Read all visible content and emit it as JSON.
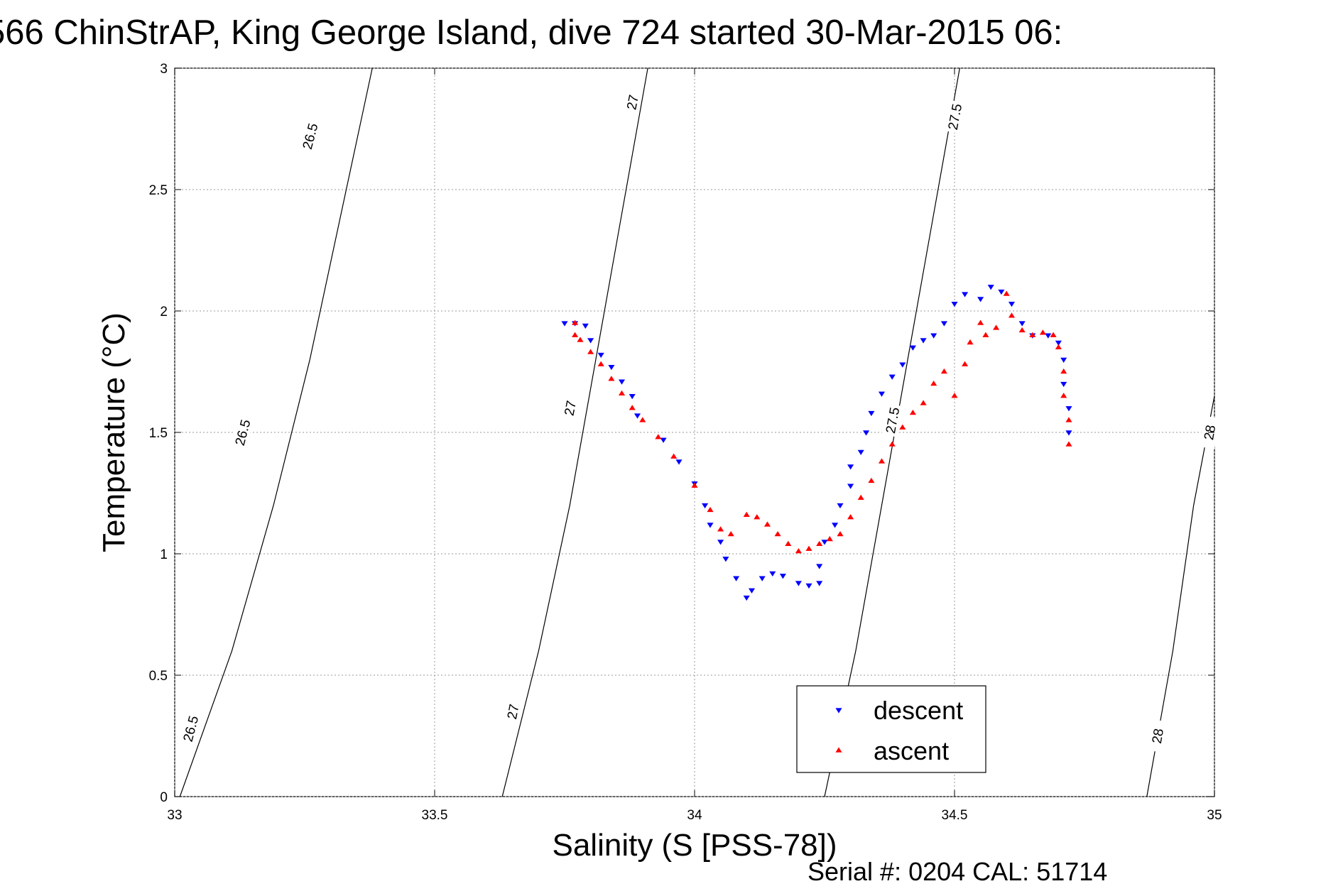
{
  "chart_data": {
    "type": "scatter",
    "title": "566 ChinStrAP, King George Island, dive 724 started 30-Mar-2015 06:",
    "xlabel": "Salinity (S [PSS-78])",
    "ylabel": "Temperature (°C)",
    "xlim": [
      33,
      35
    ],
    "ylim": [
      0,
      3
    ],
    "xticks": [
      "33",
      "33.5",
      "34",
      "34.5",
      "35"
    ],
    "yticks": [
      "0",
      "0.5",
      "1",
      "1.5",
      "2",
      "2.5",
      "3"
    ],
    "grid": true,
    "legend_position": "bottom-right",
    "footer": "Serial #: 0204  CAL: 51714",
    "contours": [
      {
        "level": "26.5",
        "points": [
          [
            33.01,
            0.0
          ],
          [
            33.11,
            0.6
          ],
          [
            33.19,
            1.2
          ],
          [
            33.26,
            1.8
          ],
          [
            33.32,
            2.4
          ],
          [
            33.38,
            3.0
          ]
        ],
        "labels": [
          [
            33.03,
            0.28
          ],
          [
            33.13,
            1.5
          ],
          [
            33.26,
            2.72
          ]
        ]
      },
      {
        "level": "27",
        "points": [
          [
            33.63,
            0.0
          ],
          [
            33.7,
            0.6
          ],
          [
            33.76,
            1.2
          ],
          [
            33.81,
            1.8
          ],
          [
            33.86,
            2.4
          ],
          [
            33.91,
            3.0
          ]
        ],
        "labels": [
          [
            33.65,
            0.35
          ],
          [
            33.76,
            1.6
          ],
          [
            33.88,
            2.86
          ]
        ]
      },
      {
        "level": "27.5",
        "points": [
          [
            34.25,
            0.0
          ],
          [
            34.31,
            0.6
          ],
          [
            34.36,
            1.2
          ],
          [
            34.41,
            1.8
          ],
          [
            34.46,
            2.4
          ],
          [
            34.51,
            3.0
          ]
        ],
        "labels": [
          [
            34.38,
            1.55
          ],
          [
            34.5,
            2.8
          ]
        ]
      },
      {
        "level": "28",
        "points": [
          [
            34.87,
            0.0
          ],
          [
            34.92,
            0.6
          ],
          [
            34.96,
            1.2
          ],
          [
            35.0,
            1.65
          ]
        ],
        "labels": [
          [
            34.89,
            0.25
          ],
          [
            34.99,
            1.5
          ]
        ]
      }
    ],
    "series": [
      {
        "name": "descent",
        "color": "#0000ff",
        "marker": "triangle-down",
        "points": [
          [
            33.75,
            1.95
          ],
          [
            33.77,
            1.95
          ],
          [
            33.79,
            1.94
          ],
          [
            33.8,
            1.88
          ],
          [
            33.82,
            1.82
          ],
          [
            33.84,
            1.77
          ],
          [
            33.86,
            1.71
          ],
          [
            33.88,
            1.65
          ],
          [
            33.89,
            1.57
          ],
          [
            33.94,
            1.47
          ],
          [
            33.97,
            1.38
          ],
          [
            34.0,
            1.29
          ],
          [
            34.02,
            1.2
          ],
          [
            34.03,
            1.12
          ],
          [
            34.05,
            1.05
          ],
          [
            34.06,
            0.98
          ],
          [
            34.08,
            0.9
          ],
          [
            34.1,
            0.82
          ],
          [
            34.11,
            0.85
          ],
          [
            34.13,
            0.9
          ],
          [
            34.15,
            0.92
          ],
          [
            34.17,
            0.91
          ],
          [
            34.2,
            0.88
          ],
          [
            34.22,
            0.87
          ],
          [
            34.24,
            0.88
          ],
          [
            34.24,
            0.95
          ],
          [
            34.25,
            1.05
          ],
          [
            34.27,
            1.12
          ],
          [
            34.28,
            1.2
          ],
          [
            34.3,
            1.28
          ],
          [
            34.3,
            1.36
          ],
          [
            34.32,
            1.42
          ],
          [
            34.33,
            1.5
          ],
          [
            34.34,
            1.58
          ],
          [
            34.36,
            1.66
          ],
          [
            34.38,
            1.73
          ],
          [
            34.4,
            1.78
          ],
          [
            34.42,
            1.85
          ],
          [
            34.44,
            1.88
          ],
          [
            34.46,
            1.9
          ],
          [
            34.48,
            1.95
          ],
          [
            34.5,
            2.03
          ],
          [
            34.52,
            2.07
          ],
          [
            34.55,
            2.05
          ],
          [
            34.57,
            2.1
          ],
          [
            34.59,
            2.08
          ],
          [
            34.61,
            2.03
          ],
          [
            34.63,
            1.95
          ],
          [
            34.65,
            1.9
          ],
          [
            34.68,
            1.9
          ],
          [
            34.7,
            1.87
          ],
          [
            34.71,
            1.8
          ],
          [
            34.71,
            1.7
          ],
          [
            34.72,
            1.6
          ],
          [
            34.72,
            1.5
          ]
        ]
      },
      {
        "name": "ascent",
        "color": "#ff0000",
        "marker": "triangle-up",
        "points": [
          [
            33.77,
            1.95
          ],
          [
            33.77,
            1.9
          ],
          [
            33.78,
            1.88
          ],
          [
            33.8,
            1.83
          ],
          [
            33.82,
            1.78
          ],
          [
            33.84,
            1.72
          ],
          [
            33.86,
            1.66
          ],
          [
            33.88,
            1.6
          ],
          [
            33.9,
            1.55
          ],
          [
            33.93,
            1.48
          ],
          [
            33.96,
            1.4
          ],
          [
            34.0,
            1.28
          ],
          [
            34.03,
            1.18
          ],
          [
            34.05,
            1.1
          ],
          [
            34.07,
            1.08
          ],
          [
            34.1,
            1.16
          ],
          [
            34.12,
            1.15
          ],
          [
            34.14,
            1.12
          ],
          [
            34.16,
            1.08
          ],
          [
            34.18,
            1.04
          ],
          [
            34.2,
            1.01
          ],
          [
            34.22,
            1.02
          ],
          [
            34.24,
            1.04
          ],
          [
            34.26,
            1.06
          ],
          [
            34.28,
            1.08
          ],
          [
            34.3,
            1.15
          ],
          [
            34.32,
            1.23
          ],
          [
            34.34,
            1.3
          ],
          [
            34.36,
            1.38
          ],
          [
            34.38,
            1.45
          ],
          [
            34.4,
            1.52
          ],
          [
            34.42,
            1.58
          ],
          [
            34.44,
            1.62
          ],
          [
            34.46,
            1.7
          ],
          [
            34.48,
            1.75
          ],
          [
            34.5,
            1.65
          ],
          [
            34.52,
            1.78
          ],
          [
            34.53,
            1.87
          ],
          [
            34.55,
            1.95
          ],
          [
            34.56,
            1.9
          ],
          [
            34.58,
            1.93
          ],
          [
            34.6,
            2.07
          ],
          [
            34.61,
            1.98
          ],
          [
            34.63,
            1.92
          ],
          [
            34.65,
            1.9
          ],
          [
            34.67,
            1.91
          ],
          [
            34.69,
            1.9
          ],
          [
            34.7,
            1.85
          ],
          [
            34.71,
            1.75
          ],
          [
            34.71,
            1.65
          ],
          [
            34.72,
            1.55
          ],
          [
            34.72,
            1.45
          ]
        ]
      }
    ]
  }
}
